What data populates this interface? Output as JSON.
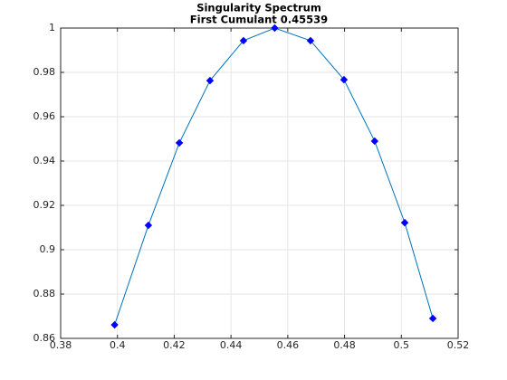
{
  "chart_data": {
    "type": "line",
    "title": "Singularity Spectrum",
    "subtitle": "First Cumulant 0.45539",
    "x": [
      0.399,
      0.4109,
      0.4218,
      0.4326,
      0.4444,
      0.4554,
      0.468,
      0.4798,
      0.4906,
      0.5012,
      0.5111
    ],
    "series": [
      {
        "name": "Singularity Spectrum",
        "color": "#0072bd",
        "marker_color": "#0000ff",
        "values": [
          0.8661,
          0.911,
          0.9482,
          0.9763,
          0.9943,
          1,
          0.9943,
          0.9767,
          0.949,
          0.9122,
          0.869
        ]
      }
    ],
    "xlim": [
      0.38,
      0.52
    ],
    "xticks": [
      0.38,
      0.4,
      0.42,
      0.44,
      0.46,
      0.48,
      0.5,
      0.52
    ],
    "ylim": [
      0.86,
      1
    ],
    "yticks": [
      0.86,
      0.88,
      0.9,
      0.92,
      0.94,
      0.96,
      0.98,
      1
    ],
    "grid": true
  }
}
